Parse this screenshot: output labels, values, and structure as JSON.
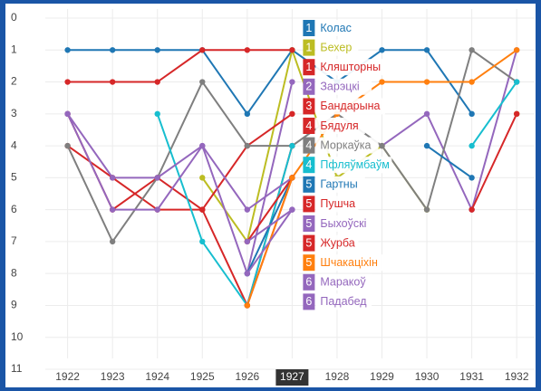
{
  "chart_data": {
    "type": "line",
    "x": [
      1922,
      1923,
      1924,
      1925,
      1926,
      1927,
      1928,
      1929,
      1930,
      1931,
      1932
    ],
    "xlim": [
      1921.1,
      1932.4
    ],
    "ylim": [
      0,
      11
    ],
    "yticks": [
      0,
      1,
      2,
      3,
      4,
      5,
      6,
      7,
      8,
      9,
      10,
      11
    ],
    "y_inverted": true,
    "grid": true,
    "hover": 1927,
    "series": [
      {
        "name": "Колас",
        "color": "#1f77b4",
        "values": [
          1,
          1,
          1,
          1,
          3,
          1,
          2,
          1,
          1,
          3,
          null
        ]
      },
      {
        "name": "Бехер",
        "color": "#bcbd22",
        "values": [
          null,
          null,
          null,
          5,
          7,
          1,
          5,
          4,
          6,
          null,
          3
        ]
      },
      {
        "name": "Кляшторны",
        "color": "#d62728",
        "values": [
          2,
          2,
          2,
          1,
          1,
          1,
          null,
          null,
          null,
          null,
          null
        ]
      },
      {
        "name": "Зарэцкі",
        "color": "#9467bd",
        "values": [
          null,
          null,
          null,
          null,
          8,
          2,
          null,
          4,
          3,
          6,
          1
        ]
      },
      {
        "name": "Бандарына",
        "color": "#d62728",
        "values": [
          4,
          5,
          6,
          6,
          4,
          3,
          null,
          null,
          null,
          null,
          null
        ]
      },
      {
        "name": "Бядуля",
        "color": "#d62728",
        "values": [
          3,
          6,
          5,
          6,
          9,
          4,
          null,
          null,
          null,
          null,
          null
        ]
      },
      {
        "name": "Моркаўка",
        "color": "#7f7f7f",
        "values": [
          4,
          7,
          5,
          2,
          4,
          4,
          3,
          4,
          6,
          1,
          2
        ]
      },
      {
        "name": "Пфляўмбаўм",
        "color": "#17becf",
        "values": [
          null,
          null,
          3,
          7,
          9,
          4,
          null,
          null,
          null,
          4,
          2
        ]
      },
      {
        "name": "Гартны",
        "color": "#1f77b4",
        "values": [
          null,
          null,
          null,
          null,
          8,
          5,
          null,
          null,
          4,
          5,
          null
        ]
      },
      {
        "name": "Пушча",
        "color": "#d62728",
        "values": [
          null,
          null,
          null,
          null,
          7,
          5,
          null,
          null,
          null,
          null,
          null
        ]
      },
      {
        "name": "Быхоўскі",
        "color": "#9467bd",
        "values": [
          3,
          6,
          6,
          4,
          6,
          5,
          null,
          null,
          null,
          null,
          null
        ]
      },
      {
        "name": "Журба",
        "color": "#d62728",
        "values": [
          null,
          null,
          null,
          null,
          9,
          5,
          null,
          null,
          null,
          6,
          3
        ]
      },
      {
        "name": "Шчакаціхін",
        "color": "#ff7f0e",
        "values": [
          null,
          null,
          null,
          null,
          9,
          5,
          3,
          2,
          2,
          2,
          1
        ]
      },
      {
        "name": "Маракоў",
        "color": "#9467bd",
        "values": [
          3,
          5,
          5,
          4,
          8,
          6,
          null,
          null,
          null,
          null,
          null
        ]
      },
      {
        "name": "Падабед",
        "color": "#9467bd",
        "values": [
          null,
          null,
          null,
          null,
          7,
          6,
          null,
          null,
          null,
          null,
          null
        ]
      }
    ]
  }
}
